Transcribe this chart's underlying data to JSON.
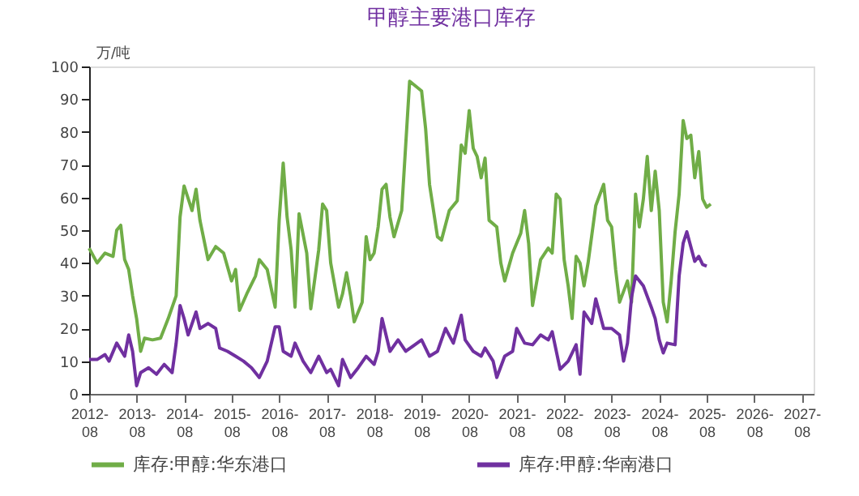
{
  "chart_data": {
    "type": "line",
    "title": "甲醇主要港口库存",
    "ylabel": "万/吨",
    "xlim": [
      "2012-08",
      "2027-11"
    ],
    "xticks": [
      "2012-08",
      "2013-08",
      "2014-08",
      "2015-08",
      "2016-08",
      "2017-08",
      "2018-08",
      "2019-08",
      "2020-08",
      "2021-08",
      "2022-08",
      "2023-08",
      "2024-08",
      "2025-08",
      "2026-08",
      "2027-08"
    ],
    "ylim": [
      0,
      100
    ],
    "yticks": [
      0,
      10,
      20,
      30,
      40,
      50,
      60,
      70,
      80,
      90,
      100
    ],
    "grid": false,
    "legend": "bottom",
    "line_style": "solid",
    "marker": "none",
    "series": [
      {
        "name": "库存:甲醇:华东港口",
        "color": "#70ad47",
        "x": [
          "2012-08",
          "2012-10",
          "2012-12",
          "2013-02",
          "2013-03",
          "2013-04",
          "2013-05",
          "2013-06",
          "2013-07",
          "2013-08",
          "2013-09",
          "2013-10",
          "2013-12",
          "2014-02",
          "2014-04",
          "2014-06",
          "2014-07",
          "2014-08",
          "2014-10",
          "2014-11",
          "2014-12",
          "2015-02",
          "2015-04",
          "2015-06",
          "2015-08",
          "2015-09",
          "2015-10",
          "2015-12",
          "2016-02",
          "2016-03",
          "2016-05",
          "2016-07",
          "2016-08",
          "2016-09",
          "2016-10",
          "2016-11",
          "2016-12",
          "2017-01",
          "2017-03",
          "2017-04",
          "2017-06",
          "2017-07",
          "2017-08",
          "2017-09",
          "2017-11",
          "2017-12",
          "2018-01",
          "2018-02",
          "2018-03",
          "2018-05",
          "2018-06",
          "2018-07",
          "2018-08",
          "2018-09",
          "2018-10",
          "2018-11",
          "2018-12",
          "2019-01",
          "2019-03",
          "2019-05",
          "2019-08",
          "2019-09",
          "2019-10",
          "2019-12",
          "2020-01",
          "2020-03",
          "2020-05",
          "2020-06",
          "2020-07",
          "2020-08",
          "2020-09",
          "2020-10",
          "2020-11",
          "2020-12",
          "2021-01",
          "2021-03",
          "2021-04",
          "2021-05",
          "2021-07",
          "2021-09",
          "2021-10",
          "2021-11",
          "2021-12",
          "2022-02",
          "2022-04",
          "2022-05",
          "2022-06",
          "2022-07",
          "2022-08",
          "2022-09",
          "2022-10",
          "2022-11",
          "2022-12",
          "2023-01",
          "2023-02",
          "2023-04",
          "2023-06",
          "2023-07",
          "2023-08",
          "2023-09",
          "2023-10",
          "2023-12",
          "2024-01",
          "2024-02",
          "2024-03",
          "2024-04",
          "2024-05",
          "2024-06",
          "2024-07",
          "2024-08",
          "2024-09",
          "2024-10",
          "2024-11",
          "2024-12",
          "2025-01",
          "2025-02",
          "2025-03",
          "2025-04",
          "2025-05",
          "2025-06",
          "2025-07",
          "2025-08",
          "2025-09"
        ],
        "values": [
          44.5,
          40,
          43,
          42,
          50,
          51.5,
          41,
          38,
          30,
          23,
          13,
          17,
          16.5,
          17,
          23,
          30,
          54,
          63.5,
          56,
          62.5,
          53,
          41,
          45,
          43,
          34.5,
          38,
          25.5,
          31,
          36,
          41,
          38,
          26.5,
          53,
          70.5,
          54,
          44,
          26.5,
          55,
          43,
          26,
          44,
          58,
          56,
          40,
          26.5,
          30.5,
          37,
          30,
          22,
          28,
          48,
          41,
          43,
          51,
          62.5,
          64,
          54,
          48,
          56,
          95.5,
          92.5,
          81,
          64,
          48,
          47,
          56,
          59,
          76,
          73.5,
          86.5,
          75,
          72.5,
          66,
          72,
          53,
          51,
          40,
          34.5,
          43,
          49,
          56,
          46,
          27,
          41,
          44.5,
          43,
          61,
          59.5,
          41,
          33,
          23,
          42,
          40,
          33,
          40,
          57.5,
          64,
          53,
          51,
          38,
          28,
          34.5,
          28,
          61,
          51,
          59.5,
          72.5,
          56,
          68,
          56,
          28,
          22,
          34.5,
          49.5,
          61,
          83.5,
          78,
          79,
          66,
          74,
          59.5,
          57,
          58
        ]
      },
      {
        "name": "库存:甲醇:华南港口",
        "color": "#7030a0",
        "x": [
          "2012-08",
          "2012-10",
          "2012-12",
          "2013-01",
          "2013-03",
          "2013-05",
          "2013-06",
          "2013-07",
          "2013-08",
          "2013-09",
          "2013-11",
          "2014-01",
          "2014-03",
          "2014-05",
          "2014-06",
          "2014-07",
          "2014-08",
          "2014-09",
          "2014-11",
          "2014-12",
          "2015-02",
          "2015-04",
          "2015-05",
          "2015-07",
          "2015-09",
          "2015-11",
          "2016-01",
          "2016-03",
          "2016-05",
          "2016-07",
          "2016-08",
          "2016-09",
          "2016-11",
          "2016-12",
          "2017-02",
          "2017-04",
          "2017-06",
          "2017-08",
          "2017-09",
          "2017-11",
          "2017-12",
          "2018-02",
          "2018-04",
          "2018-06",
          "2018-08",
          "2018-09",
          "2018-10",
          "2018-12",
          "2019-02",
          "2019-04",
          "2019-08",
          "2019-10",
          "2019-12",
          "2020-02",
          "2020-04",
          "2020-06",
          "2020-07",
          "2020-09",
          "2020-11",
          "2020-12",
          "2021-02",
          "2021-03",
          "2021-05",
          "2021-07",
          "2021-08",
          "2021-10",
          "2021-12",
          "2022-02",
          "2022-04",
          "2022-05",
          "2022-07",
          "2022-09",
          "2022-11",
          "2022-12",
          "2023-01",
          "2023-03",
          "2023-04",
          "2023-06",
          "2023-08",
          "2023-10",
          "2023-11",
          "2023-12",
          "2024-01",
          "2024-02",
          "2024-04",
          "2024-06",
          "2024-07",
          "2024-08",
          "2024-09",
          "2024-10",
          "2024-12",
          "2025-01",
          "2025-02",
          "2025-03",
          "2025-05",
          "2025-06",
          "2025-07",
          "2025-08"
        ],
        "values": [
          10.5,
          10.5,
          12,
          10,
          15.5,
          11.5,
          18,
          13,
          2.5,
          6.5,
          8,
          6,
          9,
          6.5,
          15.5,
          27,
          23,
          18,
          25,
          20,
          21.5,
          20,
          14,
          13,
          11.5,
          10,
          8,
          5,
          10,
          20.5,
          20.5,
          13,
          11.5,
          15.5,
          10,
          6.5,
          11.5,
          6.5,
          7.5,
          2.5,
          10.5,
          5,
          8,
          11.5,
          9,
          13,
          23,
          13,
          16.5,
          13,
          16.5,
          11.5,
          13,
          20,
          15.5,
          24,
          16.5,
          13,
          11.5,
          14,
          10,
          5,
          11.5,
          13,
          20,
          15.5,
          15,
          18,
          16.5,
          19,
          7.5,
          10,
          15,
          6,
          25,
          21.5,
          29,
          20,
          20,
          18,
          10,
          15.5,
          29.5,
          36,
          33,
          26.5,
          23,
          16.5,
          12.5,
          15.5,
          15,
          36,
          46,
          49.5,
          40.5,
          42,
          39.5,
          39
        ]
      }
    ]
  }
}
